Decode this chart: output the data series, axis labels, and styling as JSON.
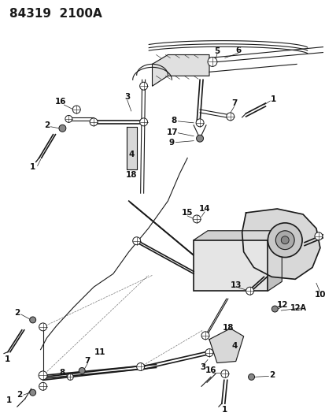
{
  "title": "84319  2100A",
  "bg_color": "#ffffff",
  "line_color": "#1a1a1a",
  "title_fontsize": 11,
  "label_fontsize": 7.5,
  "fig_width": 4.14,
  "fig_height": 5.33,
  "dpi": 100
}
